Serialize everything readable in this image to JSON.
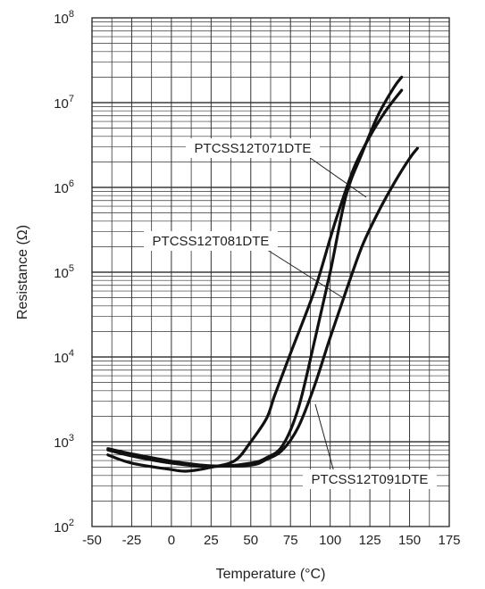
{
  "chart_data": {
    "type": "line",
    "xlabel": "Temperature (°C)",
    "ylabel": "Resistance (Ω)",
    "xlim": [
      -50,
      175
    ],
    "ylim": [
      100,
      100000000
    ],
    "yscale": "log",
    "grid": true,
    "x_ticks": [
      "-50",
      "-25",
      "0",
      "25",
      "50",
      "75",
      "100",
      "125",
      "150",
      "175"
    ],
    "y_ticks": [
      {
        "base": "10",
        "exp": "2"
      },
      {
        "base": "10",
        "exp": "3"
      },
      {
        "base": "10",
        "exp": "4"
      },
      {
        "base": "10",
        "exp": "5"
      },
      {
        "base": "10",
        "exp": "6"
      },
      {
        "base": "10",
        "exp": "7"
      },
      {
        "base": "10",
        "exp": "8"
      }
    ],
    "series": [
      {
        "name": "PTCSS12T071DTE",
        "points": [
          [
            -40,
            800
          ],
          [
            -25,
            680
          ],
          [
            0,
            560
          ],
          [
            25,
            510
          ],
          [
            50,
            560
          ],
          [
            60,
            650
          ],
          [
            70,
            900
          ],
          [
            80,
            2500
          ],
          [
            90,
            15000
          ],
          [
            100,
            100000
          ],
          [
            110,
            800000
          ],
          [
            120,
            2500000
          ],
          [
            130,
            7000000
          ],
          [
            140,
            15000000
          ],
          [
            145,
            20000000
          ]
        ]
      },
      {
        "name": "PTCSS12T081DTE",
        "points": [
          [
            -40,
            700
          ],
          [
            -25,
            560
          ],
          [
            0,
            470
          ],
          [
            10,
            450
          ],
          [
            25,
            500
          ],
          [
            40,
            600
          ],
          [
            50,
            1000
          ],
          [
            60,
            1900
          ],
          [
            65,
            3500
          ],
          [
            75,
            11000
          ],
          [
            90,
            60000
          ],
          [
            100,
            250000
          ],
          [
            105,
            500000
          ],
          [
            115,
            1700000
          ],
          [
            125,
            4000000
          ],
          [
            135,
            8000000
          ],
          [
            145,
            14000000
          ]
        ]
      },
      {
        "name": "PTCSS12T091DTE",
        "points": [
          [
            -40,
            830
          ],
          [
            -25,
            720
          ],
          [
            0,
            590
          ],
          [
            25,
            520
          ],
          [
            50,
            530
          ],
          [
            60,
            620
          ],
          [
            70,
            800
          ],
          [
            80,
            1500
          ],
          [
            90,
            4500
          ],
          [
            100,
            17000
          ],
          [
            110,
            60000
          ],
          [
            120,
            200000
          ],
          [
            130,
            500000
          ],
          [
            140,
            1100000
          ],
          [
            150,
            2200000
          ],
          [
            155,
            2900000
          ]
        ]
      }
    ],
    "annotations": [
      {
        "text": "PTCSS12T071DTE",
        "target_series": "PTCSS12T071DTE"
      },
      {
        "text": "PTCSS12T081DTE",
        "target_series": "PTCSS12T081DTE"
      },
      {
        "text": "PTCSS12T091DTE",
        "target_series": "PTCSS12T091DTE"
      }
    ]
  }
}
